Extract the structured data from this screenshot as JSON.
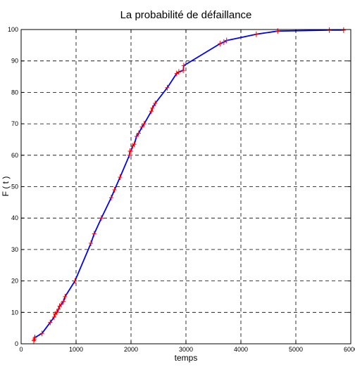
{
  "chart_data": {
    "type": "line",
    "title": "La probabilité de défaillance",
    "xlabel": "temps",
    "ylabel": "F ( t )",
    "xlim": [
      0,
      6000
    ],
    "ylim": [
      0,
      100
    ],
    "xticks": [
      0,
      1000,
      2000,
      3000,
      4000,
      5000,
      6000
    ],
    "yticks": [
      0,
      10,
      20,
      30,
      40,
      50,
      60,
      70,
      80,
      90,
      100
    ],
    "xtick_labels": [
      "0",
      "1000",
      "2000",
      "3000",
      "4000",
      "5000",
      "6000"
    ],
    "ytick_labels": [
      "0",
      "10",
      "20",
      "30",
      "40",
      "50",
      "60",
      "70",
      "80",
      "90",
      "100"
    ],
    "grid": true,
    "colors": {
      "line": "#0000ff",
      "markers": "#ff0000",
      "axes": "#000000"
    },
    "series": [
      {
        "marker": "plus",
        "x": [
          230,
          240,
          250,
          380,
          530,
          600,
          620,
          650,
          680,
          700,
          730,
          770,
          800,
          980,
          1270,
          1330,
          1460,
          1640,
          1700,
          1800,
          1970,
          1980,
          2000,
          2030,
          2060,
          2100,
          2140,
          2200,
          2240,
          2370,
          2390,
          2440,
          2660,
          2830,
          2870,
          2950,
          2960,
          3620,
          3690,
          3740,
          4280,
          4670,
          5610,
          5870
        ],
        "y": [
          1,
          1.5,
          2,
          3.3,
          6.8,
          8.5,
          9.5,
          10,
          11,
          12,
          12.5,
          13.5,
          15,
          20,
          32,
          35,
          40,
          46.5,
          49,
          53,
          60,
          61.3,
          61.3,
          63,
          63.5,
          66,
          67,
          69,
          70,
          74,
          75,
          76.5,
          81.5,
          86,
          86.5,
          87,
          88.5,
          95.5,
          96,
          96.5,
          98.5,
          99.5,
          99.8,
          99.8
        ]
      }
    ]
  }
}
